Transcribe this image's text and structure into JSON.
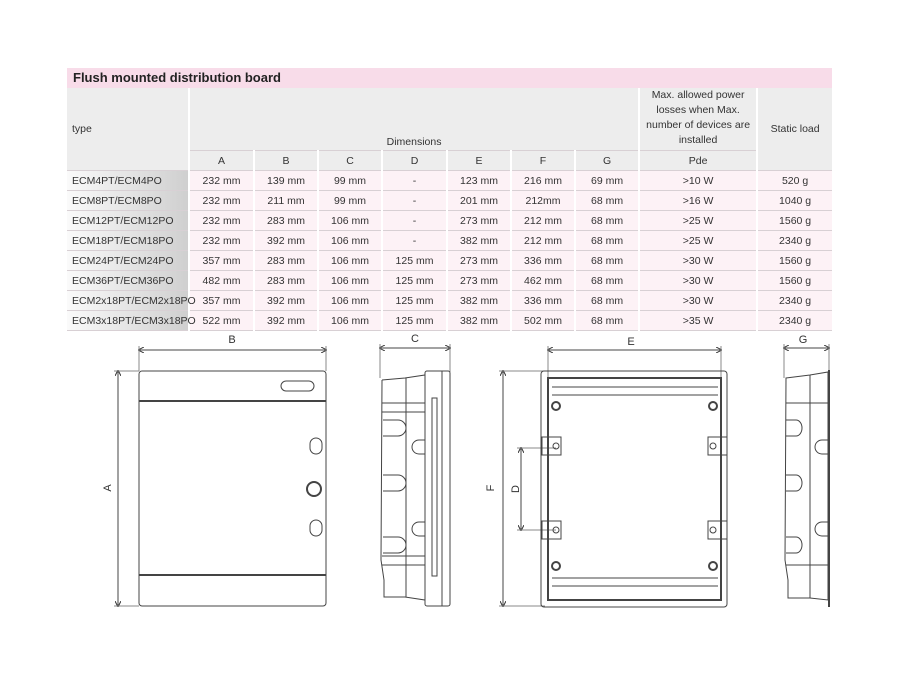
{
  "title": "Flush mounted distribution board",
  "headers": {
    "type": "type",
    "dimensions": "Dimensions",
    "letters": [
      "A",
      "B",
      "C",
      "D",
      "E",
      "F",
      "G"
    ],
    "power": "Max. allowed power losses when Max. number of devices are installed",
    "pde": "Pde",
    "static": "Static load"
  },
  "rows": [
    [
      "ECM4PT/ECM4PO",
      "232 mm",
      "139 mm",
      "99 mm",
      "-",
      "123 mm",
      "216 mm",
      "69 mm",
      ">10 W",
      "520 g"
    ],
    [
      "ECM8PT/ECM8PO",
      "232 mm",
      "211 mm",
      "99 mm",
      "-",
      "201 mm",
      "212mm",
      "68 mm",
      ">16 W",
      "1040 g"
    ],
    [
      "ECM12PT/ECM12PO",
      "232 mm",
      "283 mm",
      "106 mm",
      "-",
      "273 mm",
      "212 mm",
      "68 mm",
      ">25 W",
      "1560 g"
    ],
    [
      "ECM18PT/ECM18PO",
      "232 mm",
      "392 mm",
      "106 mm",
      "-",
      "382 mm",
      "212 mm",
      "68 mm",
      ">25 W",
      "2340 g"
    ],
    [
      "ECM24PT/ECM24PO",
      "357 mm",
      "283 mm",
      "106 mm",
      "125 mm",
      "273 mm",
      "336 mm",
      "68 mm",
      ">30 W",
      "1560 g"
    ],
    [
      "ECM36PT/ECM36PO",
      "482 mm",
      "283 mm",
      "106 mm",
      "125 mm",
      "273 mm",
      "462 mm",
      "68 mm",
      ">30 W",
      "1560 g"
    ],
    [
      "ECM2x18PT/ECM2x18PO",
      "357 mm",
      "392 mm",
      "106 mm",
      "125 mm",
      "382 mm",
      "336 mm",
      "68 mm",
      ">30 W",
      "2340 g"
    ],
    [
      "ECM3x18PT/ECM3x18PO",
      "522 mm",
      "392 mm",
      "106 mm",
      "125 mm",
      "382 mm",
      "502 mm",
      "68 mm",
      ">35 W",
      "2340 g"
    ]
  ],
  "drawing_labels": {
    "a": "A",
    "b": "B",
    "c": "C",
    "d": "D",
    "e": "E",
    "f": "F",
    "g": "G"
  },
  "colors": {
    "title_bg": "#f8dce9",
    "cell_bg": "#fdf2f6",
    "header_bg": "#ededed"
  }
}
